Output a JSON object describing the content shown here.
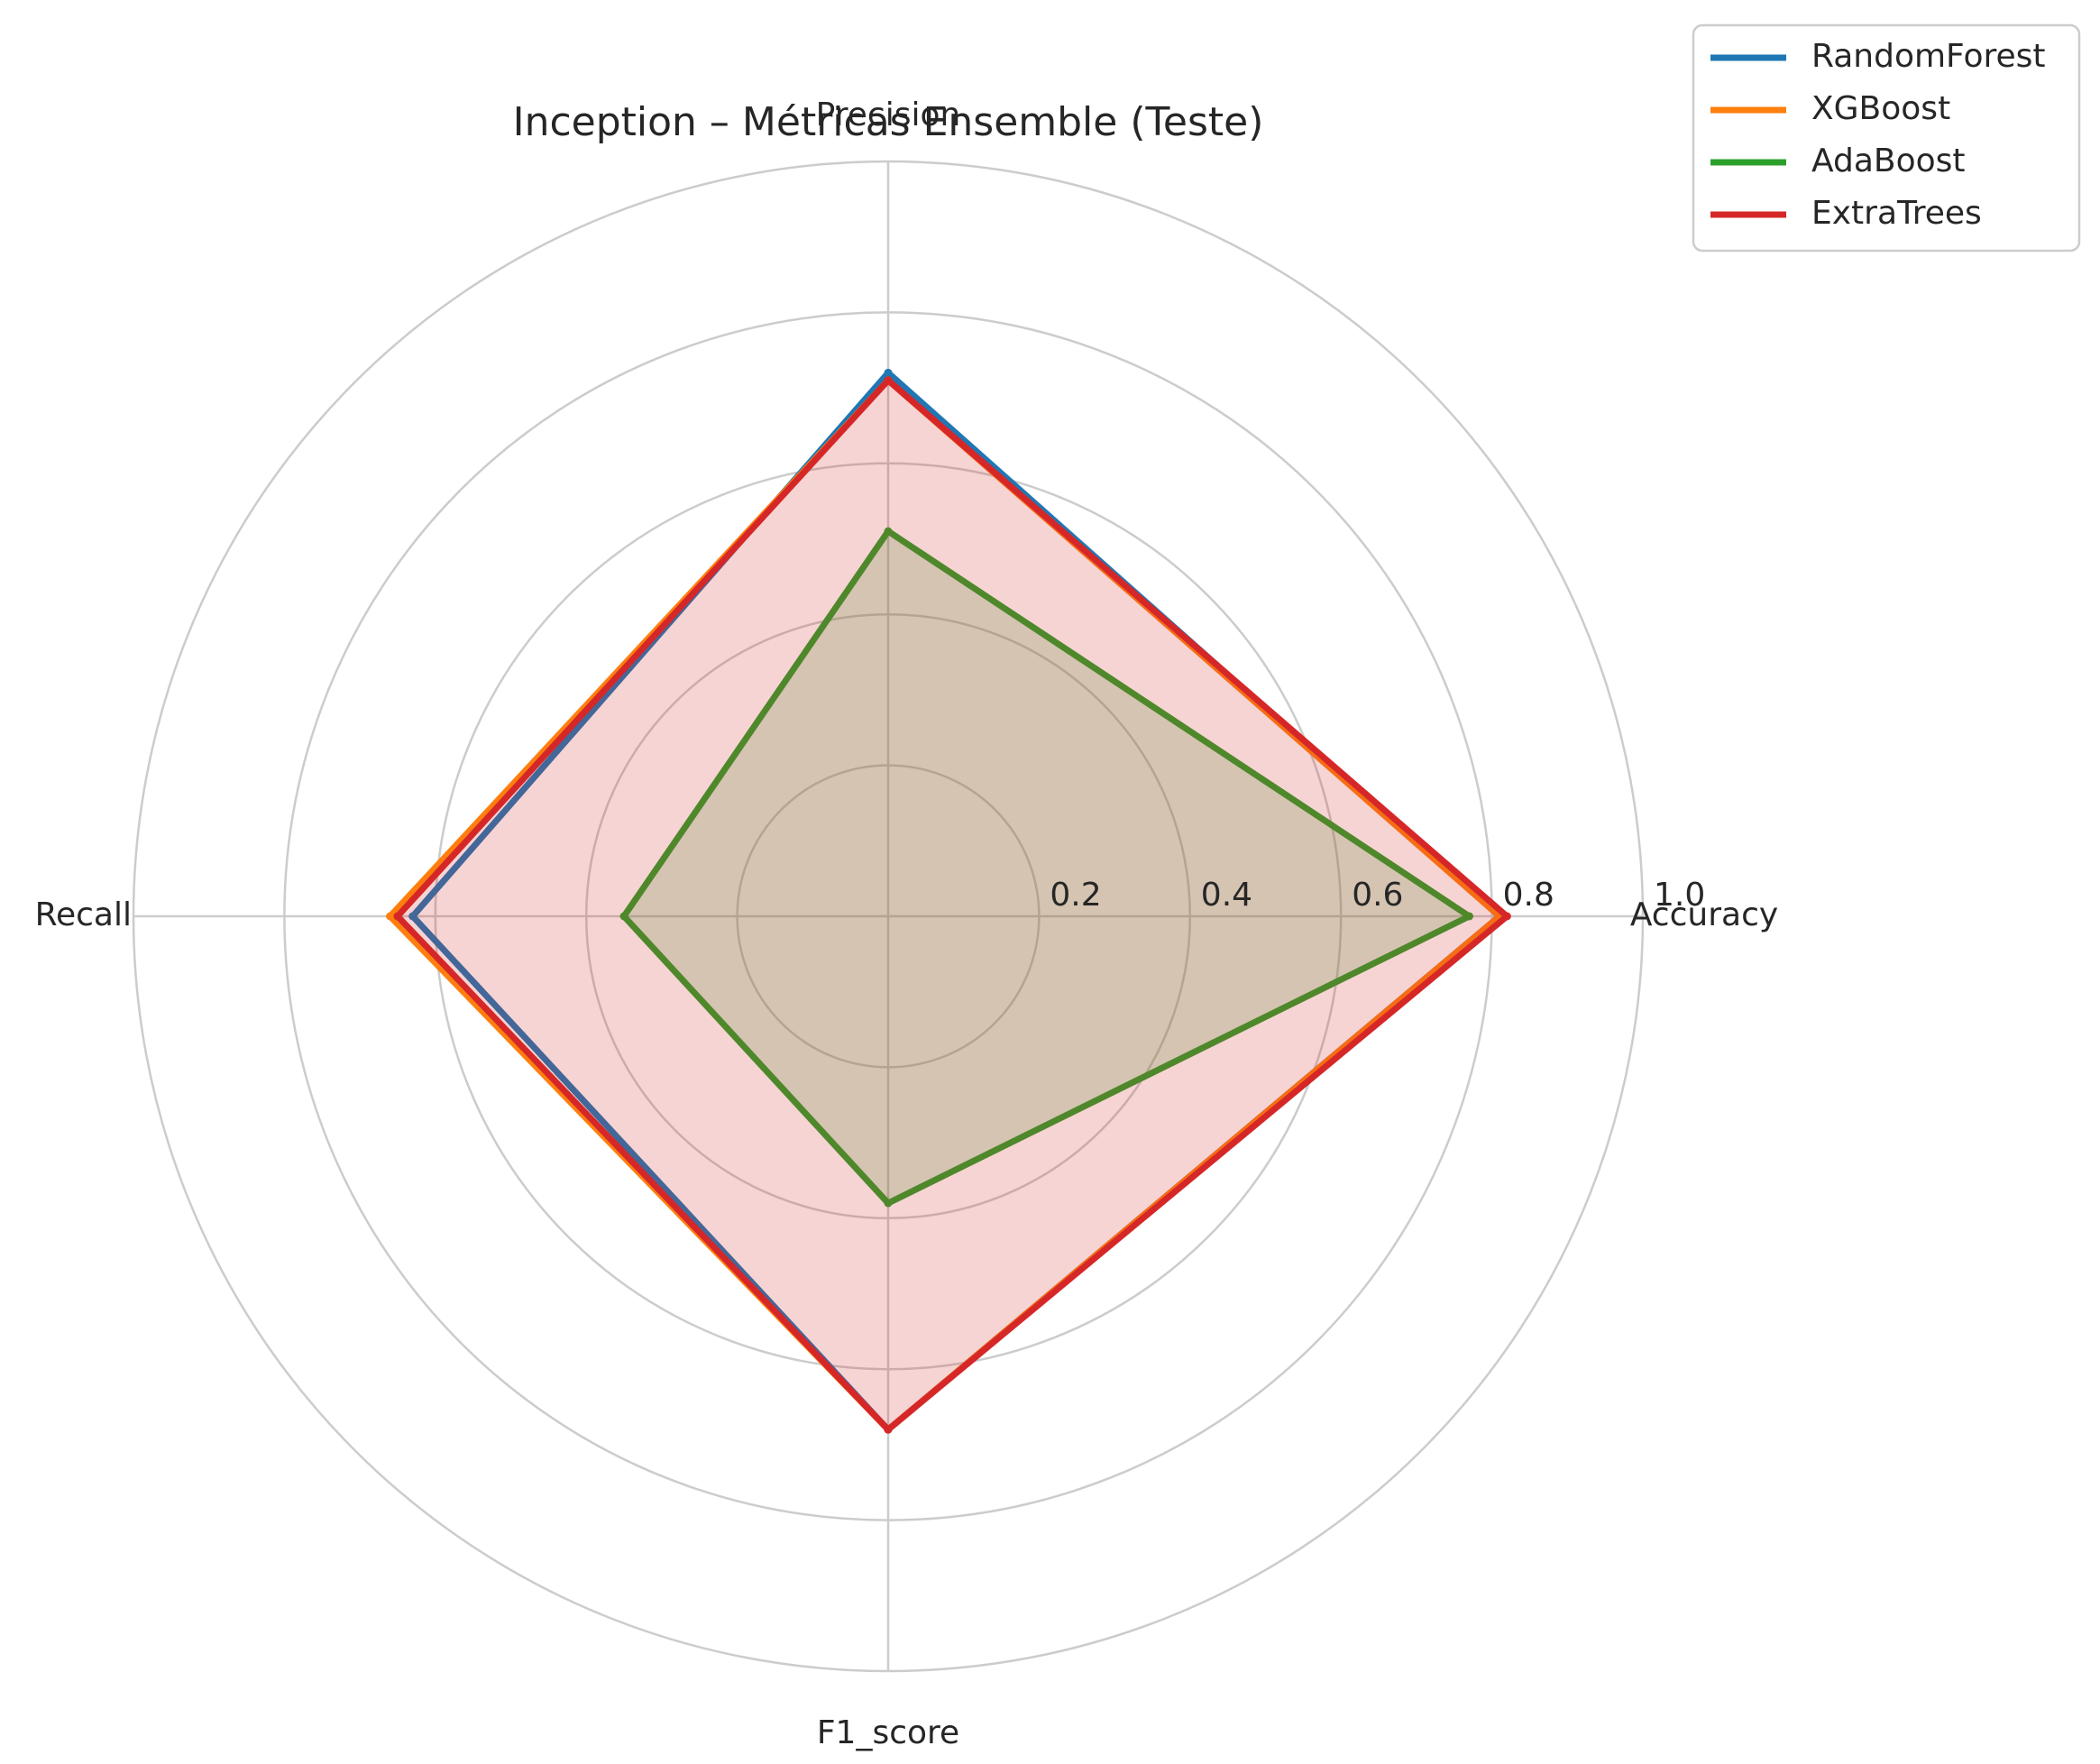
{
  "chart_data": {
    "type": "radar",
    "title": "Inception – Métricas Ensemble (Teste)",
    "axes": [
      "Accuracy",
      "Precision",
      "Recall",
      "F1_score"
    ],
    "rlim": [
      0,
      1.0
    ],
    "r_ticks": [
      0.2,
      0.4,
      0.6,
      0.8,
      1.0
    ],
    "r_tick_labels": [
      "0.2",
      "0.4",
      "0.6",
      "0.8",
      "1.0"
    ],
    "grid": true,
    "legend_position": "top-right",
    "series": [
      {
        "name": "RandomForest",
        "color": "#1f77b4",
        "values": [
          0.81,
          0.72,
          0.63,
          0.68
        ],
        "fill": false
      },
      {
        "name": "XGBoost",
        "color": "#ff7f0e",
        "values": [
          0.81,
          0.71,
          0.66,
          0.68
        ],
        "fill": false
      },
      {
        "name": "AdaBoost",
        "color": "#2ca02c",
        "values": [
          0.77,
          0.51,
          0.35,
          0.38
        ],
        "fill": true
      },
      {
        "name": "ExtraTrees",
        "color": "#d62728",
        "values": [
          0.82,
          0.71,
          0.65,
          0.68
        ],
        "fill": true
      }
    ]
  }
}
